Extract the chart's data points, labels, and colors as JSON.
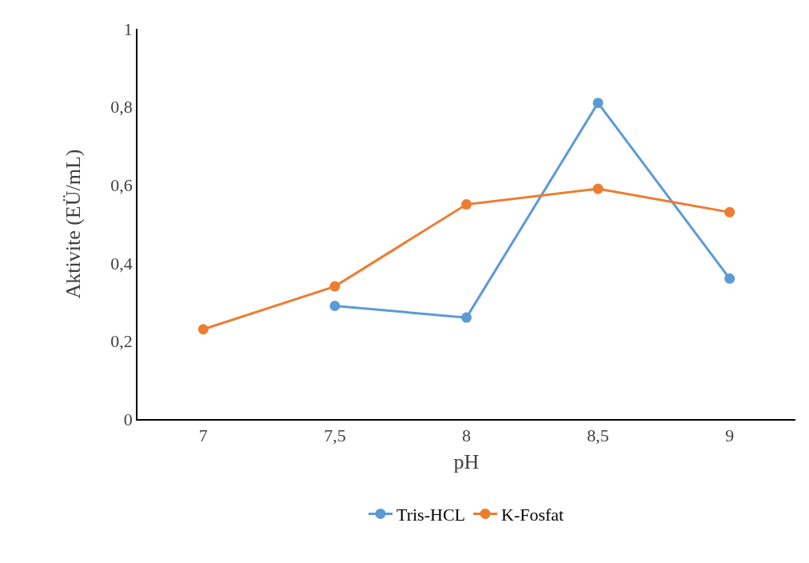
{
  "chart_data": {
    "type": "line",
    "xlabel": "pH",
    "ylabel": "Aktivite (EÜ/mL)",
    "categories": [
      "7",
      "7,5",
      "8",
      "8,5",
      "9"
    ],
    "series": [
      {
        "name": "Tris-HCL",
        "color": "#5b9bd5",
        "values": [
          null,
          0.29,
          0.26,
          0.81,
          0.36
        ]
      },
      {
        "name": "K-Fosfat",
        "color": "#ed7d31",
        "values": [
          0.23,
          0.34,
          0.55,
          0.59,
          0.53
        ]
      }
    ],
    "ylim": [
      0,
      1
    ],
    "yticks": [
      0,
      {
        "value": 0.2,
        "label": "0,2"
      },
      {
        "value": 0.4,
        "label": "0,4"
      },
      {
        "value": 0.6,
        "label": "0,6"
      },
      {
        "value": 0.8,
        "label": "0,8"
      },
      1
    ],
    "legend": "bottom",
    "marker": "circle",
    "line_style": "solid"
  }
}
